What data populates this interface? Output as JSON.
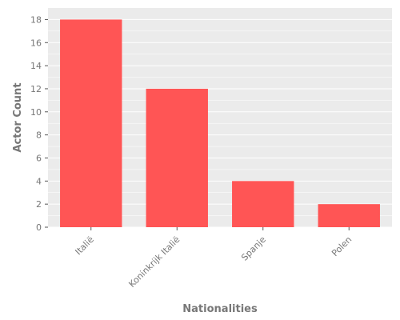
{
  "chart_data": {
    "type": "bar",
    "categories": [
      "Italië",
      "Koninkrijk Italië",
      "Spanje",
      "Polen"
    ],
    "values": [
      18,
      12,
      4,
      2
    ],
    "xlabel": "Nationalities",
    "ylabel": "Actor Count",
    "ylim": [
      0,
      19
    ],
    "yticks": [
      0,
      2,
      4,
      6,
      8,
      10,
      12,
      14,
      16,
      18
    ],
    "grid": true,
    "legend": "none",
    "colors": {
      "bar": "#ff5555",
      "plot_background": "#ebebeb",
      "grid": "#ffffff",
      "text": "#777777"
    }
  }
}
